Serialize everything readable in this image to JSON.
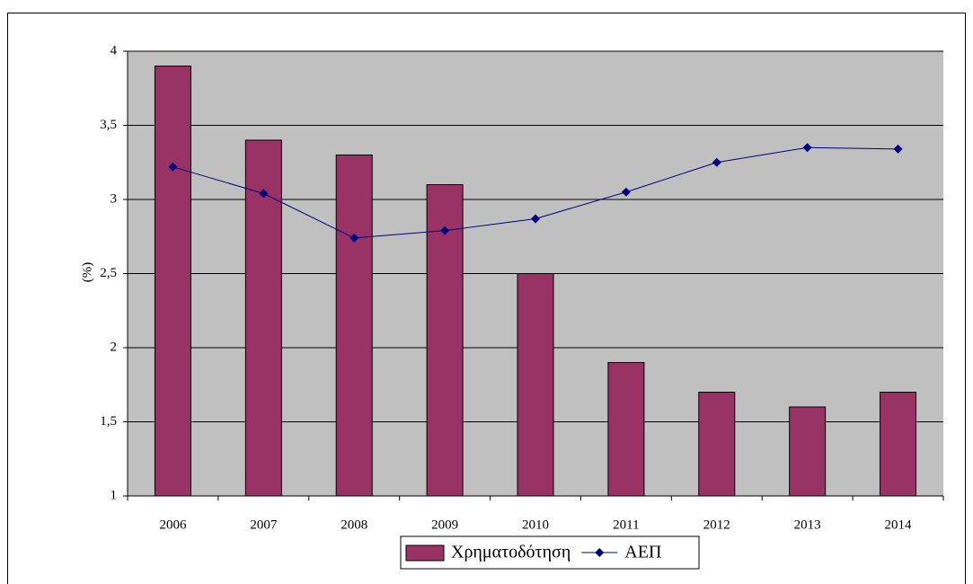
{
  "chart_data": {
    "type": "bar",
    "categories": [
      "2006",
      "2007",
      "2008",
      "2009",
      "2010",
      "2011",
      "2012",
      "2013",
      "2014"
    ],
    "series": [
      {
        "name": "Χρηματοδότηση",
        "type": "bar",
        "color": "#993366",
        "values": [
          3.9,
          3.4,
          3.3,
          3.1,
          2.5,
          1.9,
          1.7,
          1.6,
          1.7
        ]
      },
      {
        "name": "ΑΕΠ",
        "type": "line",
        "color": "#000080",
        "values": [
          3.22,
          3.04,
          2.74,
          2.79,
          2.87,
          3.05,
          3.25,
          3.35,
          3.34
        ]
      }
    ],
    "y_label": "(%)",
    "ylim": [
      1,
      4
    ],
    "yticks": [
      1,
      {
        "value": 1.5,
        "label": "1,5"
      },
      2,
      {
        "value": 2.5,
        "label": "2,5"
      },
      3,
      {
        "value": 3.5,
        "label": "3,5"
      },
      4
    ],
    "grid": true,
    "plot_background": "#c0c0c0",
    "legend": "bottom"
  }
}
